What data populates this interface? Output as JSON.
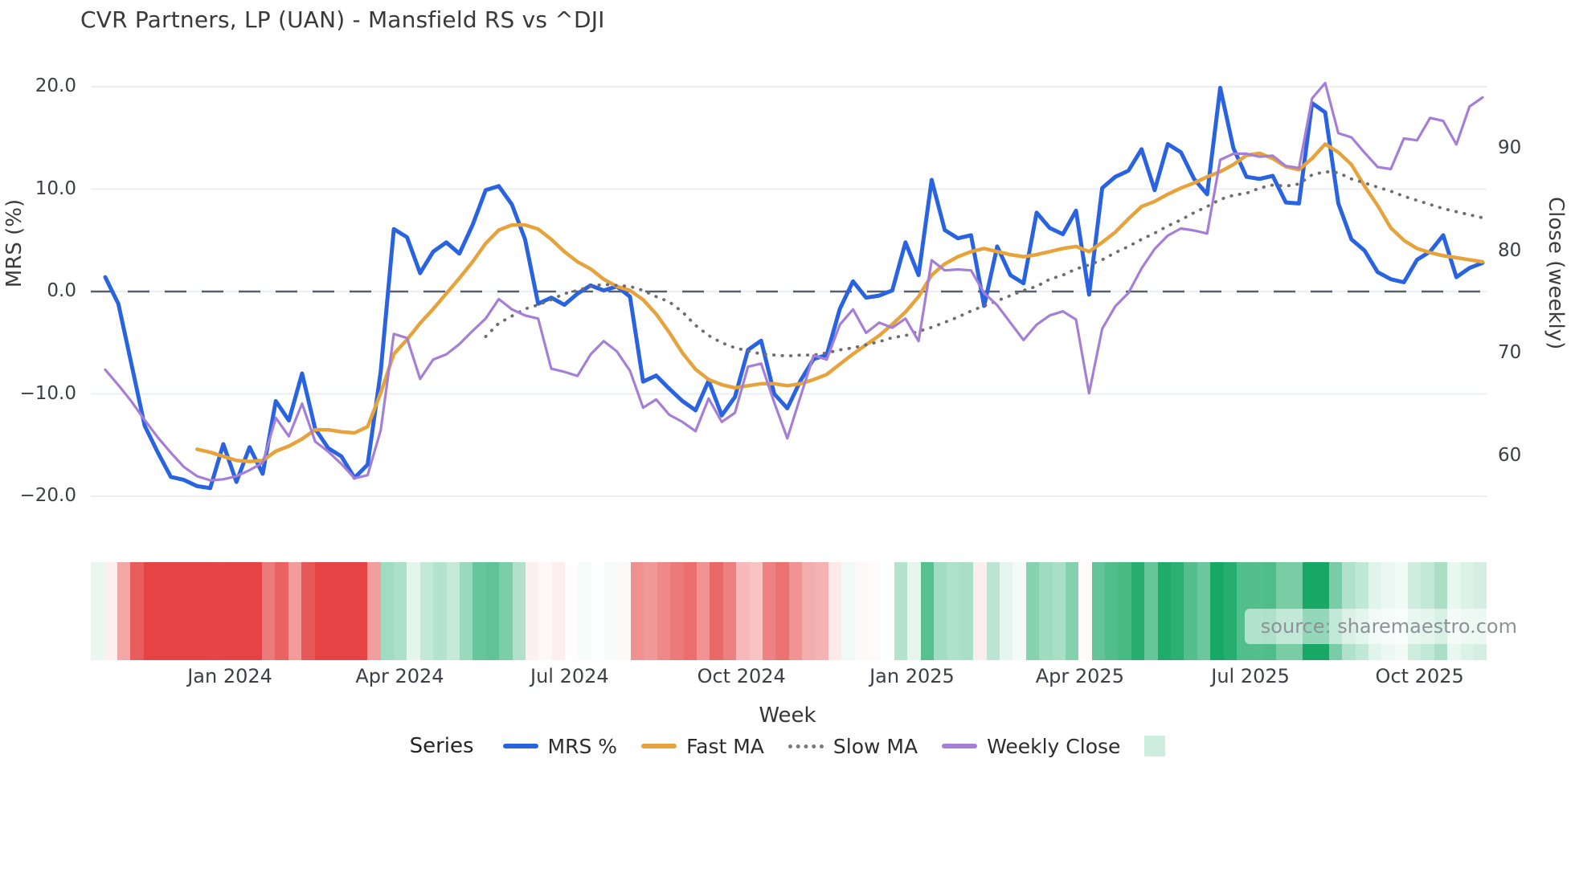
{
  "title": "CVR Partners, LP (UAN) - Mansfield RS vs ^DJI",
  "source": "source: sharemaestro.com",
  "chart_data": {
    "type": "line",
    "title": "CVR Partners, LP (UAN) - Mansfield RS vs ^DJI",
    "x_axis": {
      "title": "Week",
      "ticks": [
        {
          "label": "Jan 2024",
          "week": 9.5
        },
        {
          "label": "Apr 2024",
          "week": 22.45
        },
        {
          "label": "Jul 2024",
          "week": 35.4
        },
        {
          "label": "Oct 2024",
          "week": 48.5
        },
        {
          "label": "Jan 2025",
          "week": 61.5
        },
        {
          "label": "Apr 2025",
          "week": 74.3
        },
        {
          "label": "Jul 2025",
          "week": 87.3
        },
        {
          "label": "Oct 2025",
          "week": 100.2
        }
      ]
    },
    "y_left": {
      "title": "MRS (%)",
      "ticks": [
        {
          "label": "20.0",
          "value": 20
        },
        {
          "label": "10.0",
          "value": 10
        },
        {
          "label": "0.0",
          "value": 0
        },
        {
          "label": "−10.0",
          "value": -10
        },
        {
          "label": "−20.0",
          "value": -20
        }
      ],
      "zero_line": true,
      "grid": true
    },
    "y_right": {
      "title": "Close (weekly)",
      "ticks": [
        {
          "label": "90",
          "value": 90
        },
        {
          "label": "80",
          "value": 80
        },
        {
          "label": "70",
          "value": 70
        },
        {
          "label": "60",
          "value": 60
        }
      ]
    },
    "legend": {
      "label": "Series",
      "entries": [
        {
          "name": "MRS %",
          "style": "line",
          "color": "#2a63df"
        },
        {
          "name": "Fast MA",
          "style": "line",
          "color": "#e7a33b"
        },
        {
          "name": "Slow MA",
          "style": "dotted",
          "color": "#7a7a7a"
        },
        {
          "name": "Weekly Close",
          "style": "line",
          "color": "#a57fd6"
        },
        {
          "name": "",
          "style": "swatch",
          "color": "#cdeede"
        }
      ]
    },
    "series": [
      {
        "name": "MRS %",
        "axis": "left",
        "color": "#2a63df",
        "width": 5,
        "dash": "solid",
        "values": [
          1.4,
          -1.2,
          -7.1,
          -13.1,
          -15.7,
          -18.1,
          -18.4,
          -19.0,
          -19.2,
          -14.9,
          -18.6,
          -15.2,
          -17.8,
          -10.7,
          -12.6,
          -8.0,
          -13.4,
          -15.3,
          -16.1,
          -18.2,
          -16.9,
          -7.8,
          6.1,
          5.3,
          1.8,
          3.9,
          4.8,
          3.7,
          6.5,
          9.9,
          10.3,
          8.5,
          5.1,
          -1.2,
          -0.6,
          -1.3,
          -0.2,
          0.6,
          0.1,
          0.5,
          -0.5,
          -8.8,
          -8.2,
          -9.5,
          -10.7,
          -11.6,
          -8.7,
          -12.1,
          -10.3,
          -5.7,
          -4.8,
          -10.0,
          -11.4,
          -8.7,
          -6.6,
          -6.2,
          -1.7,
          1.0,
          -0.6,
          -0.4,
          0.1,
          4.8,
          1.6,
          10.9,
          6.0,
          5.2,
          5.5,
          -1.4,
          4.4,
          1.6,
          0.8,
          7.7,
          6.2,
          5.6,
          7.9,
          -0.3,
          10.1,
          11.2,
          11.8,
          13.9,
          9.9,
          14.4,
          13.6,
          11.0,
          9.5,
          19.9,
          14.0,
          11.2,
          11.0,
          11.3,
          8.7,
          8.6,
          18.4,
          17.5,
          8.6,
          5.1,
          4.0,
          1.9,
          1.2,
          0.9,
          3.1,
          3.9,
          5.5,
          1.4,
          2.3,
          2.8
        ]
      },
      {
        "name": "Fast MA",
        "axis": "left",
        "color": "#e7a33b",
        "width": 4.5,
        "dash": "solid",
        "values": [
          null,
          null,
          null,
          null,
          null,
          null,
          null,
          -15.4,
          -15.7,
          -16.1,
          -16.5,
          -16.6,
          -16.5,
          -15.6,
          -15.1,
          -14.4,
          -13.5,
          -13.5,
          -13.7,
          -13.8,
          -13.2,
          -9.9,
          -6.1,
          -4.7,
          -3.1,
          -1.7,
          -0.2,
          1.3,
          2.9,
          4.7,
          6.0,
          6.5,
          6.5,
          6.1,
          5.1,
          3.9,
          2.9,
          2.2,
          1.2,
          0.5,
          0.1,
          -0.8,
          -2.2,
          -4.0,
          -6.0,
          -7.6,
          -8.6,
          -9.1,
          -9.4,
          -9.2,
          -9.0,
          -9.0,
          -9.2,
          -9.0,
          -8.6,
          -8.1,
          -7.1,
          -6.1,
          -5.2,
          -4.3,
          -3.2,
          -2.0,
          -0.5,
          1.6,
          2.7,
          3.4,
          3.9,
          4.2,
          3.9,
          3.6,
          3.4,
          3.6,
          3.9,
          4.2,
          4.4,
          3.9,
          4.8,
          5.8,
          7.1,
          8.3,
          8.8,
          9.5,
          10.1,
          10.6,
          11.2,
          11.7,
          12.4,
          13.3,
          13.5,
          13.0,
          12.2,
          11.9,
          13.0,
          14.4,
          13.6,
          12.4,
          10.3,
          8.4,
          6.2,
          5.0,
          4.2,
          3.8,
          3.5,
          3.3,
          3.1,
          2.9
        ]
      },
      {
        "name": "Slow MA",
        "axis": "left",
        "color": "#6e6e6e",
        "width": 3.8,
        "dash": "dotted",
        "values": [
          null,
          null,
          null,
          null,
          null,
          null,
          null,
          null,
          null,
          null,
          null,
          null,
          null,
          null,
          null,
          null,
          null,
          null,
          null,
          null,
          null,
          null,
          null,
          null,
          null,
          null,
          null,
          null,
          null,
          -4.4,
          -3.1,
          -2.4,
          -1.7,
          -1.3,
          -0.8,
          -0.2,
          0.1,
          0.5,
          0.7,
          0.6,
          0.5,
          0.1,
          -0.5,
          -1.0,
          -2.0,
          -3.3,
          -4.3,
          -5.0,
          -5.5,
          -5.8,
          -6.1,
          -6.2,
          -6.3,
          -6.2,
          -6.2,
          -6.0,
          -5.7,
          -5.5,
          -5.2,
          -4.9,
          -4.5,
          -4.3,
          -3.9,
          -3.5,
          -3.0,
          -2.5,
          -1.9,
          -1.4,
          -0.9,
          -0.4,
          0.1,
          0.5,
          1.2,
          1.6,
          2.2,
          2.6,
          3.1,
          3.8,
          4.4,
          5.1,
          5.7,
          6.4,
          7.0,
          7.7,
          8.3,
          9.0,
          9.4,
          9.6,
          10.1,
          10.4,
          10.3,
          10.5,
          11.4,
          11.7,
          11.6,
          11.0,
          10.6,
          10.2,
          9.8,
          9.3,
          8.9,
          8.5,
          8.1,
          7.8,
          7.5,
          7.2
        ]
      },
      {
        "name": "Weekly Close",
        "axis": "right",
        "color": "#a57fd6",
        "width": 3.2,
        "dash": "solid",
        "values": [
          68.4,
          66.9,
          65.3,
          63.5,
          61.8,
          60.3,
          58.9,
          58.0,
          57.6,
          57.7,
          58.0,
          58.6,
          59.3,
          63.7,
          61.9,
          65.1,
          61.4,
          60.4,
          59.2,
          57.8,
          58.1,
          62.5,
          71.9,
          71.5,
          67.5,
          69.4,
          69.9,
          70.9,
          72.2,
          73.4,
          75.3,
          74.3,
          73.7,
          73.4,
          68.5,
          68.2,
          67.8,
          69.9,
          71.2,
          70.2,
          68.3,
          64.7,
          65.5,
          64.0,
          63.3,
          62.4,
          65.6,
          63.3,
          64.2,
          68.7,
          69.0,
          65.2,
          61.7,
          65.8,
          69.8,
          69.4,
          72.8,
          74.3,
          72.0,
          73.0,
          72.5,
          73.4,
          71.2,
          79.1,
          78.1,
          78.2,
          78.1,
          75.9,
          74.7,
          73.0,
          71.3,
          72.8,
          73.7,
          74.1,
          73.3,
          66.1,
          72.4,
          74.6,
          75.9,
          78.3,
          80.2,
          81.5,
          82.2,
          82.0,
          81.7,
          88.9,
          89.5,
          89.5,
          89.2,
          89.3,
          88.3,
          88.1,
          94.9,
          96.4,
          91.5,
          91.1,
          89.6,
          88.2,
          88.0,
          91.0,
          90.8,
          93.0,
          92.7,
          90.4,
          94.1,
          95.0
        ]
      }
    ],
    "heatmap": {
      "based_on": "MRS %",
      "positive_color": "#16a864",
      "negative_color": "#e64444",
      "max_abs": 15
    },
    "layout_hints": {
      "left_axis_range": [
        -21.5,
        21.5
      ],
      "right_axis_zero_alignment": 76.04,
      "legend_position": "bottom",
      "grid": "horizontal-only"
    }
  }
}
